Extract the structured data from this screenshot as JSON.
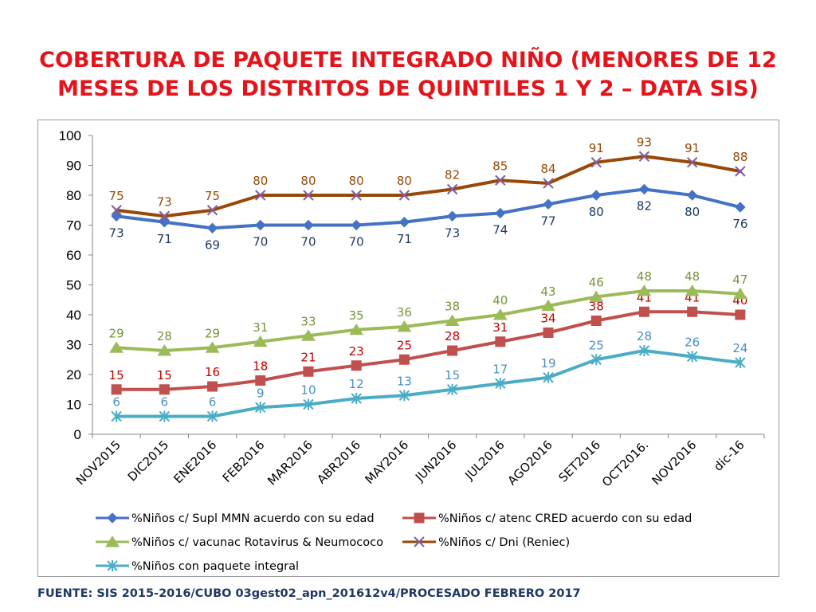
{
  "title_line1": "COBERTURA DE PAQUETE INTEGRADO NIÑO (MENORES DE 12",
  "title_line2": "MESES DE LOS DISTRITOS DE QUINTILES 1 Y 2 – DATA SIS)",
  "footer": "FUENTE: SIS 2015-2016/CUBO 03gest02_apn_201612v4/PROCESADO FEBRERO 2017",
  "chart_data": {
    "type": "line",
    "title": "",
    "xlabel": "",
    "ylabel": "",
    "ylim": [
      0,
      100
    ],
    "yticks": [
      0,
      10,
      20,
      30,
      40,
      50,
      60,
      70,
      80,
      90,
      100
    ],
    "categories": [
      "NOV2015",
      "DIC2015",
      "ENE2016",
      "FEB2016",
      "MAR2016",
      "ABR2016",
      "MAY2016",
      "JUN2016",
      "JUL2016",
      "AGO2016",
      "SET2016",
      "OCT2016.",
      "NOV2016",
      "dic-16"
    ],
    "series": [
      {
        "name": "%Niños c/ Supl MMN acuerdo con su edad",
        "color": "#4472c4",
        "label_color": "#1f3864",
        "marker": "diamond",
        "label_pos": "below",
        "values": [
          73,
          71,
          69,
          70,
          70,
          70,
          71,
          73,
          74,
          77,
          80,
          82,
          80,
          76
        ]
      },
      {
        "name": "%Niños c/ atenc CRED acuerdo con su edad",
        "color": "#c0504d",
        "label_color": "#c00000",
        "marker": "square",
        "label_pos": "above",
        "values": [
          15,
          15,
          16,
          18,
          21,
          23,
          25,
          28,
          31,
          34,
          38,
          41,
          41,
          40
        ]
      },
      {
        "name": "%Niños c/ vacunac Rotavirus & Neumococo",
        "color": "#9bbb59",
        "label_color": "#77933c",
        "marker": "triangle",
        "label_pos": "above",
        "values": [
          29,
          28,
          29,
          31,
          33,
          35,
          36,
          38,
          40,
          43,
          46,
          48,
          48,
          47
        ]
      },
      {
        "name": "%Niños c/ Dni (Reniec)",
        "color": "#984807",
        "label_color": "#984807",
        "marker": "x",
        "label_pos": "above",
        "values": [
          75,
          73,
          75,
          80,
          80,
          80,
          80,
          82,
          85,
          84,
          91,
          93,
          91,
          88
        ]
      },
      {
        "name": "%Niños con paquete integral",
        "color": "#4bacc6",
        "label_color": "#4a8fc7",
        "marker": "star",
        "label_pos": "above",
        "values": [
          6,
          6,
          6,
          9,
          10,
          12,
          13,
          15,
          17,
          19,
          25,
          28,
          26,
          24
        ]
      }
    ],
    "legend_position": "bottom"
  }
}
